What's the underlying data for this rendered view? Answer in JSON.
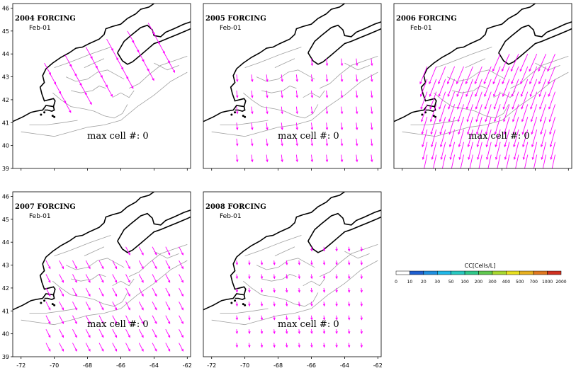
{
  "panels": [
    {
      "title": "2004 FORCING",
      "date": "Feb-01",
      "max_cell": "max cell #: 0",
      "pattern": "se-diagonal"
    },
    {
      "title": "2005 FORCING",
      "date": "Feb-01",
      "max_cell": "max cell #: 0",
      "pattern": "sparse"
    },
    {
      "title": "2006 FORCING",
      "date": "Feb-01",
      "max_cell": "max cell #: 0",
      "pattern": "dense-sw"
    },
    {
      "title": "2007 FORCING",
      "date": "Feb-01",
      "max_cell": "max cell #: 0",
      "pattern": "se-short"
    },
    {
      "title": "2008 FORCING",
      "date": "Feb-01",
      "max_cell": "max cell #: 0",
      "pattern": "tiny"
    }
  ],
  "y_ticks": [
    "46",
    "45",
    "44",
    "43",
    "42",
    "41",
    "40",
    "39"
  ],
  "x_ticks": [
    "-72",
    "-70",
    "-68",
    "-66",
    "-64",
    "-62"
  ],
  "colorbar": {
    "title": "CC[Cells/L]",
    "ticks": [
      "0",
      "10",
      "20",
      "30",
      "50",
      "100",
      "200",
      "300",
      "400",
      "500",
      "700",
      "1000",
      "2000"
    ],
    "colors": [
      "#ffffff",
      "#1f5fd0",
      "#1f8fe0",
      "#20b8e8",
      "#28c8c0",
      "#30c88a",
      "#60c850",
      "#a8d830",
      "#e8e020",
      "#e8b020",
      "#e07820",
      "#d03020"
    ]
  },
  "colors": {
    "arrow": "#ff00ff",
    "coast": "#000000",
    "bathy": "#a0a0a0"
  }
}
